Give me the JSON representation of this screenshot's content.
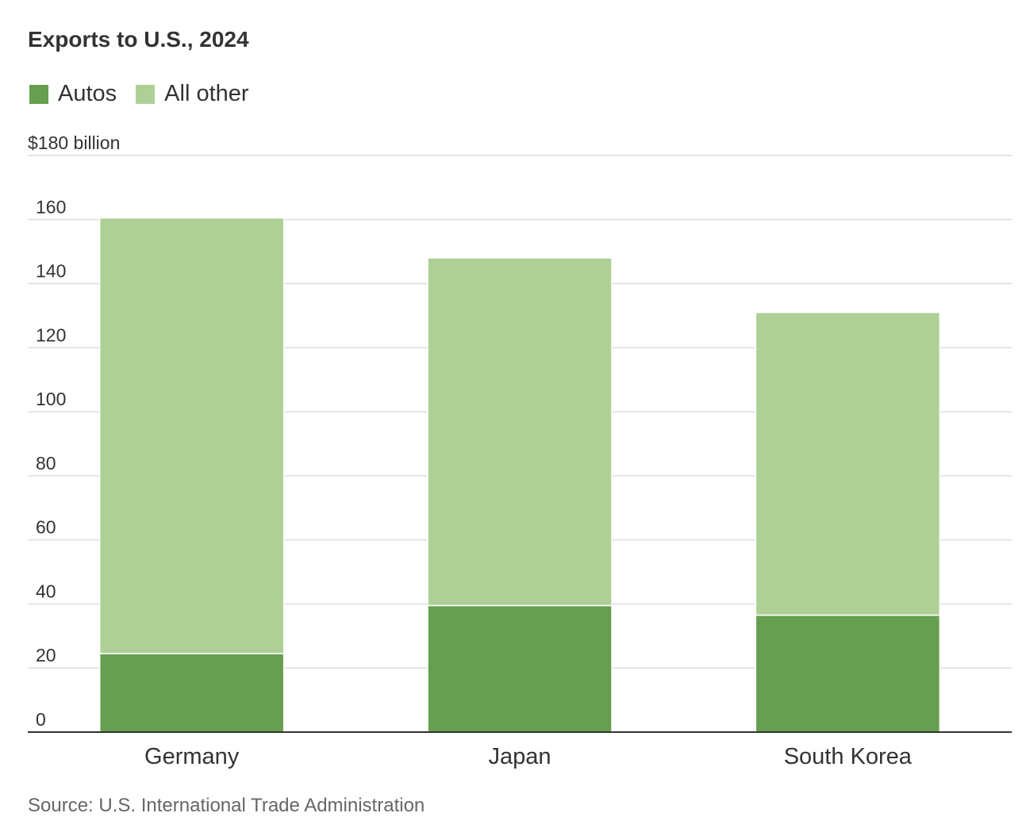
{
  "chart_data": {
    "type": "bar",
    "stacked": true,
    "title": "Exports to U.S., 2024",
    "categories": [
      "Germany",
      "Japan",
      "South Korea"
    ],
    "series": [
      {
        "name": "Autos",
        "color": "#669f4f",
        "values": [
          24.5,
          39.5,
          36.5
        ]
      },
      {
        "name": "All other",
        "color": "#aed097",
        "values": [
          136,
          108.5,
          94.5
        ]
      }
    ],
    "ylim": [
      0,
      180
    ],
    "yticks": [
      "0",
      "20",
      "40",
      "60",
      "80",
      "100",
      "120",
      "140",
      "160",
      "$180 billion"
    ],
    "ytick_values": [
      0,
      20,
      40,
      60,
      80,
      100,
      120,
      140,
      160,
      180
    ],
    "grid": true,
    "legend_position": "top-left",
    "source": "Source: U.S. International Trade Administration"
  }
}
